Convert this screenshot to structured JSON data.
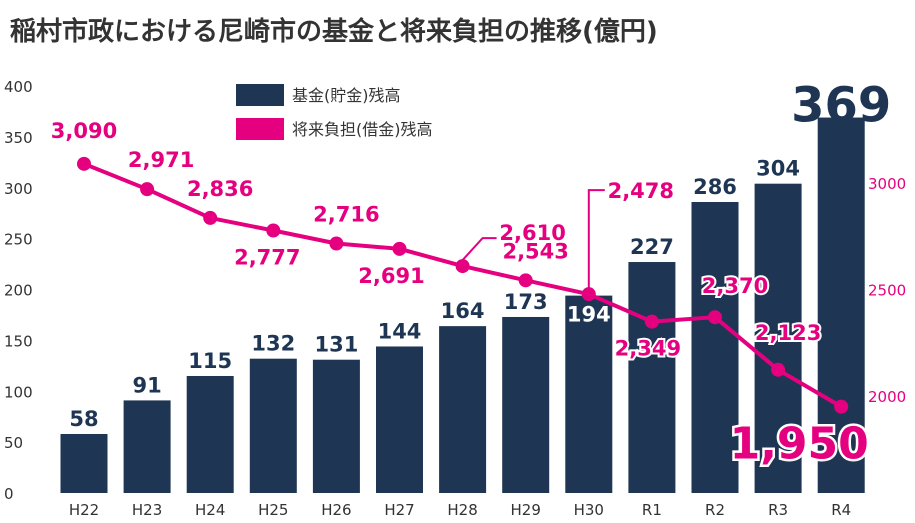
{
  "chart_data": {
    "type": "bar",
    "title": "稲村市政における尼崎市の基金と将来負担の推移(億円)",
    "categories": [
      "H22",
      "H23",
      "H24",
      "H25",
      "H26",
      "H27",
      "H28",
      "H29",
      "H30",
      "R1",
      "R2",
      "R3",
      "R4"
    ],
    "series": [
      {
        "name": "基金(貯金)残高",
        "type": "bar",
        "axis": "left",
        "values": [
          58,
          91,
          115,
          132,
          131,
          144,
          164,
          173,
          194,
          227,
          286,
          304,
          369
        ],
        "labels": [
          "58",
          "91",
          "115",
          "132",
          "131",
          "144",
          "164",
          "173",
          "194",
          "227",
          "286",
          "304",
          "369"
        ]
      },
      {
        "name": "将来負担(借金)残高",
        "type": "line",
        "axis": "right",
        "values": [
          3090,
          2971,
          2836,
          2777,
          2716,
          2691,
          2610,
          2543,
          2478,
          2349,
          2370,
          2123,
          1950
        ],
        "labels": [
          "3,090",
          "2,971",
          "2,836",
          "2,777",
          "2,716",
          "2,691",
          "2,610",
          "2,543",
          "2,478",
          "2,349",
          "2,370",
          "2,123",
          "1,950"
        ]
      }
    ],
    "left_axis": {
      "ylim": [
        0,
        400
      ],
      "ticks": [
        "0",
        "50",
        "100",
        "150",
        "200",
        "250",
        "300",
        "350",
        "400"
      ]
    },
    "right_axis": {
      "ylim": [
        1750,
        3450
      ],
      "ticks": [
        "2000",
        "2500",
        "3000"
      ],
      "tick_values": [
        2000,
        2500,
        3000
      ]
    },
    "grid": false,
    "legend_position": "top-center",
    "colors": {
      "bar": "#1e3653",
      "line": "#e5007f",
      "text": "#333333"
    }
  }
}
